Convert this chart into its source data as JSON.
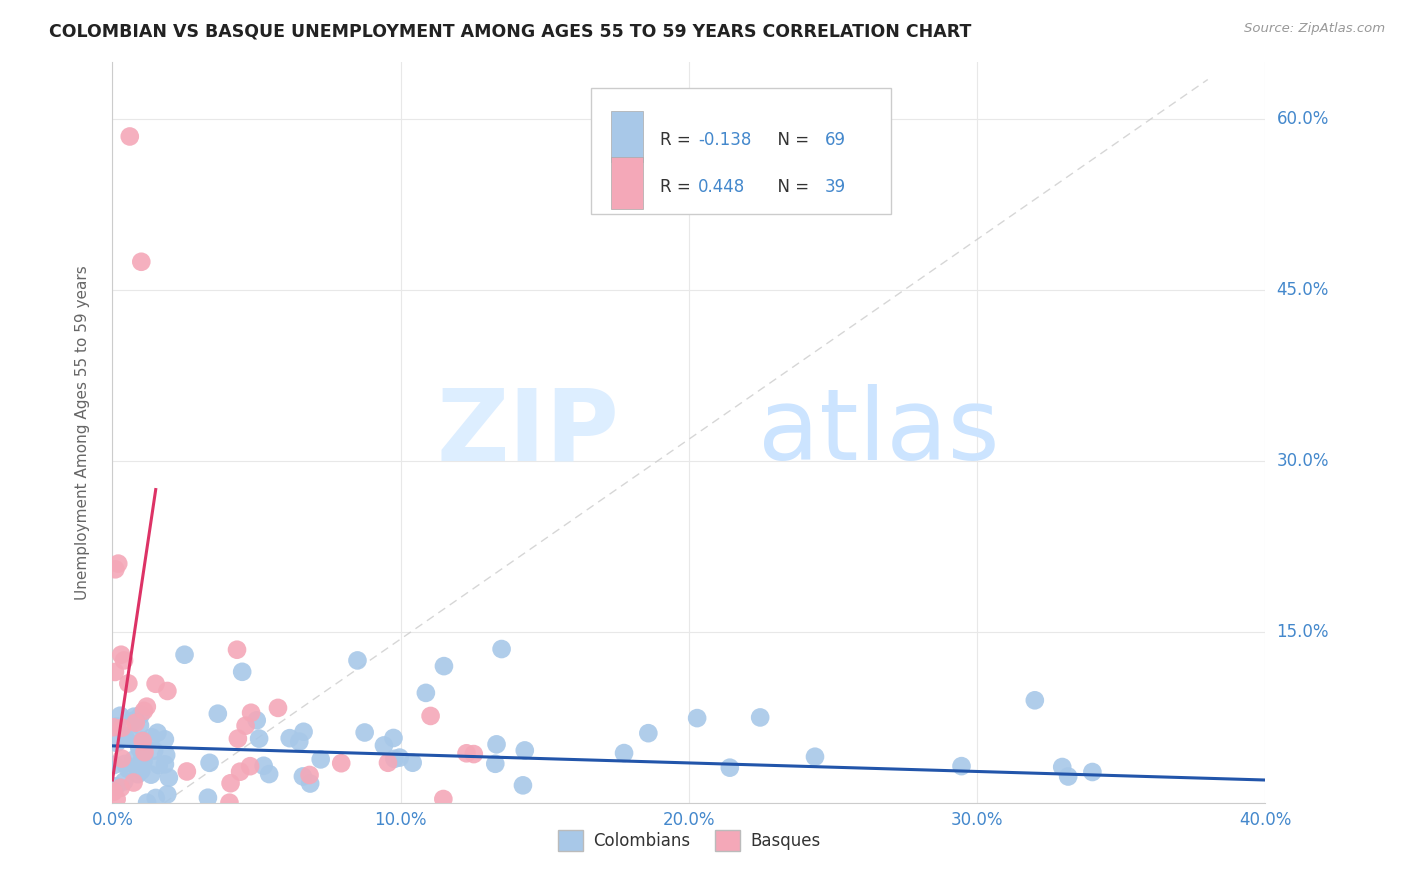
{
  "title": "COLOMBIAN VS BASQUE UNEMPLOYMENT AMONG AGES 55 TO 59 YEARS CORRELATION CHART",
  "source": "Source: ZipAtlas.com",
  "ylabel": "Unemployment Among Ages 55 to 59 years",
  "xlim": [
    0.0,
    0.4
  ],
  "ylim": [
    0.0,
    0.65
  ],
  "xticks": [
    0.0,
    0.1,
    0.2,
    0.3,
    0.4
  ],
  "xtick_labels": [
    "0.0%",
    "10.0%",
    "20.0%",
    "30.0%",
    "40.0%"
  ],
  "yticks": [
    0.0,
    0.15,
    0.3,
    0.45,
    0.6
  ],
  "ytick_labels": [
    "",
    "15.0%",
    "30.0%",
    "45.0%",
    "60.0%"
  ],
  "colombian_color": "#a8c8e8",
  "basque_color": "#f4a8b8",
  "colombian_line_color": "#2255aa",
  "basque_line_color": "#dd3366",
  "legend_R_colombian": "-0.138",
  "legend_N_colombian": "69",
  "legend_R_basque": "0.448",
  "legend_N_basque": "39",
  "tick_color": "#4488cc",
  "ylabel_color": "#666666",
  "title_color": "#222222",
  "source_color": "#999999",
  "grid_color": "#e8e8e8",
  "watermark_zip_color": "#ddeeff",
  "watermark_atlas_color": "#cce4ff"
}
